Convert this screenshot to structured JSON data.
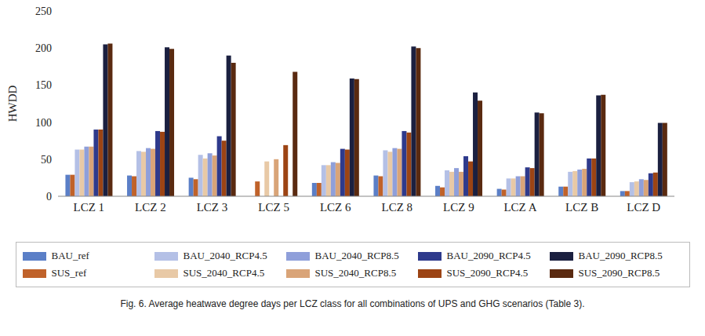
{
  "chart_data": {
    "type": "bar",
    "title": "Fig. 6. Average heatwave degree days per LCZ class for all combinations of UPS and GHG scenarios (Table 3).",
    "y_label": "HWDD",
    "categories": [
      "LCZ 1",
      "LCZ 2",
      "LCZ 3",
      "LCZ 5",
      "LCZ 6",
      "LCZ 8",
      "LCZ 9",
      "LCZ A",
      "LCZ B",
      "LCZ D"
    ],
    "ylim": [
      0,
      250
    ],
    "yticks": [
      0,
      50,
      100,
      150,
      200,
      250
    ],
    "grid": false,
    "legend": "bottom",
    "series": [
      {
        "name": "BAU_ref",
        "color": "#5b7fc7",
        "values": [
          29,
          28,
          25,
          null,
          18,
          28,
          14,
          10,
          13,
          7
        ]
      },
      {
        "name": "BAU_2040_RCP4.5",
        "color": "#b4c0e6",
        "values": [
          63,
          61,
          56,
          null,
          42,
          62,
          35,
          24,
          33,
          19
        ]
      },
      {
        "name": "BAU_2040_RCP8.5",
        "color": "#8f9fda",
        "values": [
          67,
          65,
          58,
          null,
          46,
          65,
          38,
          27,
          36,
          23
        ]
      },
      {
        "name": "BAU_2090_RCP4.5",
        "color": "#2e3a8c",
        "values": [
          90,
          88,
          81,
          null,
          64,
          88,
          54,
          39,
          51,
          31
        ]
      },
      {
        "name": "BAU_2090_RCP8.5",
        "color": "#1b2040",
        "values": [
          205,
          201,
          190,
          null,
          159,
          202,
          140,
          113,
          136,
          99
        ]
      },
      {
        "name": "SUS_ref",
        "color": "#c0622a",
        "values": [
          29,
          27,
          23,
          20,
          18,
          27,
          12,
          9,
          13,
          7
        ]
      },
      {
        "name": "SUS_2040_RCP4.5",
        "color": "#e8c9a6",
        "values": [
          63,
          60,
          51,
          47,
          42,
          60,
          33,
          24,
          34,
          20
        ]
      },
      {
        "name": "SUS_2040_RCP8.5",
        "color": "#d9a478",
        "values": [
          67,
          64,
          55,
          50,
          45,
          64,
          33,
          27,
          37,
          22
        ]
      },
      {
        "name": "SUS_2090_RCP4.5",
        "color": "#9c4414",
        "values": [
          90,
          87,
          75,
          69,
          63,
          86,
          47,
          38,
          51,
          32
        ]
      },
      {
        "name": "SUS_2090_RCP8.5",
        "color": "#5a2a10",
        "values": [
          206,
          199,
          180,
          168,
          158,
          200,
          129,
          112,
          137,
          99
        ]
      }
    ]
  }
}
